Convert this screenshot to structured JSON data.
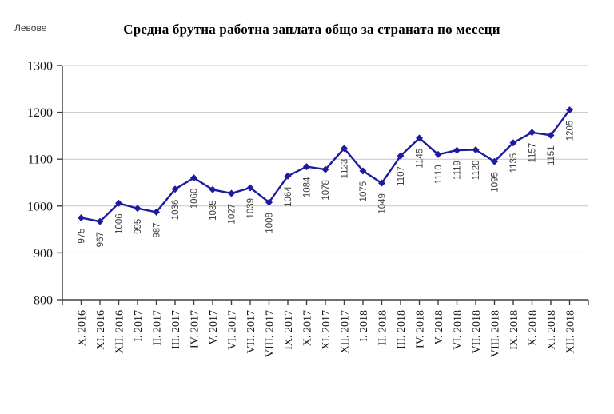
{
  "header": {
    "units_label": "Левове"
  },
  "chart_data": {
    "type": "line",
    "title": "Средна брутна работна заплата общо за страната по месеци",
    "ylabel": "Левове",
    "xlabel": "",
    "categories": [
      "X. 2016",
      "XI. 2016",
      "XII. 2016",
      "I. 2017",
      "II. 2017",
      "III. 2017",
      "IV. 2017",
      "V. 2017",
      "VI. 2017",
      "VII. 2017",
      "VIII. 2017",
      "IX. 2017",
      "X. 2017",
      "XI. 2017",
      "XII. 2017",
      "I. 2018",
      "II. 2018",
      "III. 2018",
      "IV. 2018",
      "V. 2018",
      "VI. 2018",
      "VII. 2018",
      "VIII. 2018",
      "IX. 2018",
      "X. 2018",
      "XI. 2018",
      "XII. 2018"
    ],
    "series": [
      {
        "name": "Средна брутна работна заплата",
        "values": [
          975,
          967,
          1006,
          995,
          987,
          1036,
          1060,
          1035,
          1027,
          1039,
          1008,
          1064,
          1084,
          1078,
          1123,
          1075,
          1049,
          1107,
          1145,
          1110,
          1119,
          1120,
          1095,
          1135,
          1157,
          1151,
          1205
        ]
      }
    ],
    "ylim": [
      800,
      1300
    ],
    "yticks": [
      800,
      900,
      1000,
      1100,
      1200,
      1300
    ],
    "grid": true,
    "legend_position": "none",
    "data_labels": true,
    "data_label_rotation": -90,
    "x_tick_rotation": -90,
    "marker": "diamond",
    "colors": {
      "series_line": "#1c1c9c",
      "marker_fill": "#1c1c9c",
      "gridline": "#c6c6c6",
      "axis": "#404040",
      "data_label": "#404040",
      "tick_label": "#1a1a1a"
    }
  }
}
